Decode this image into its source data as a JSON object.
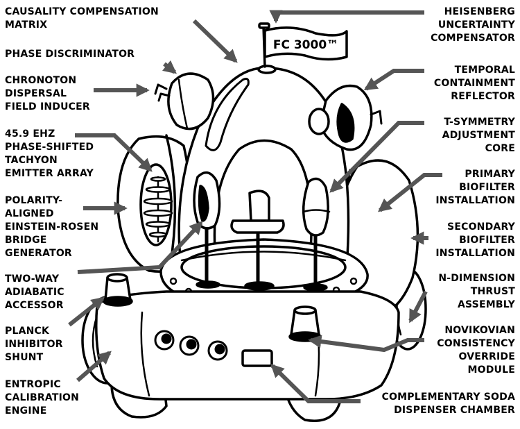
{
  "flag_text": "FC 3000™",
  "colors": {
    "ink": "#000000",
    "pointer": "#555555",
    "paper": "#ffffff"
  },
  "labels": {
    "causality": "CAUSALITY COMPENSATION\nMATRIX",
    "phase_disc": "PHASE DISCRIMINATOR",
    "chronoton": "CHRONOTON\nDISPERSAL\nFIELD INDUCER",
    "tachyon": "45.9 EHZ\nPHASE-SHIFTED\nTACHYON\nEMITTER ARRAY",
    "einstein": "POLARITY-\nALIGNED\nEINSTEIN-ROSEN\nBRIDGE\nGENERATOR",
    "two_way": "TWO-WAY\nADIABATIC\nACCESSOR",
    "planck": "PLANCK\nINHIBITOR\nSHUNT",
    "entropic": "ENTROPIC\nCALIBRATION\nENGINE",
    "heisenberg": "HEISENBERG\nUNCERTAINTY\nCOMPENSATOR",
    "temporal": "TEMPORAL\nCONTAINMENT\nREFLECTOR",
    "tsym": "T-SYMMETRY\nADJUSTMENT\nCORE",
    "primary": "PRIMARY\nBIOFILTER\nINSTALLATION",
    "secondary": "SECONDARY\nBIOFILTER\nINSTALLATION",
    "ndim": "N-DIMENSION\nTHRUST\nASSEMBLY",
    "novikov": "NOVIKOVIAN\nCONSISTENCY\nOVERRIDE\nMODULE",
    "soda": "COMPLEMENTARY SODA\nDISPENSER CHAMBER"
  }
}
